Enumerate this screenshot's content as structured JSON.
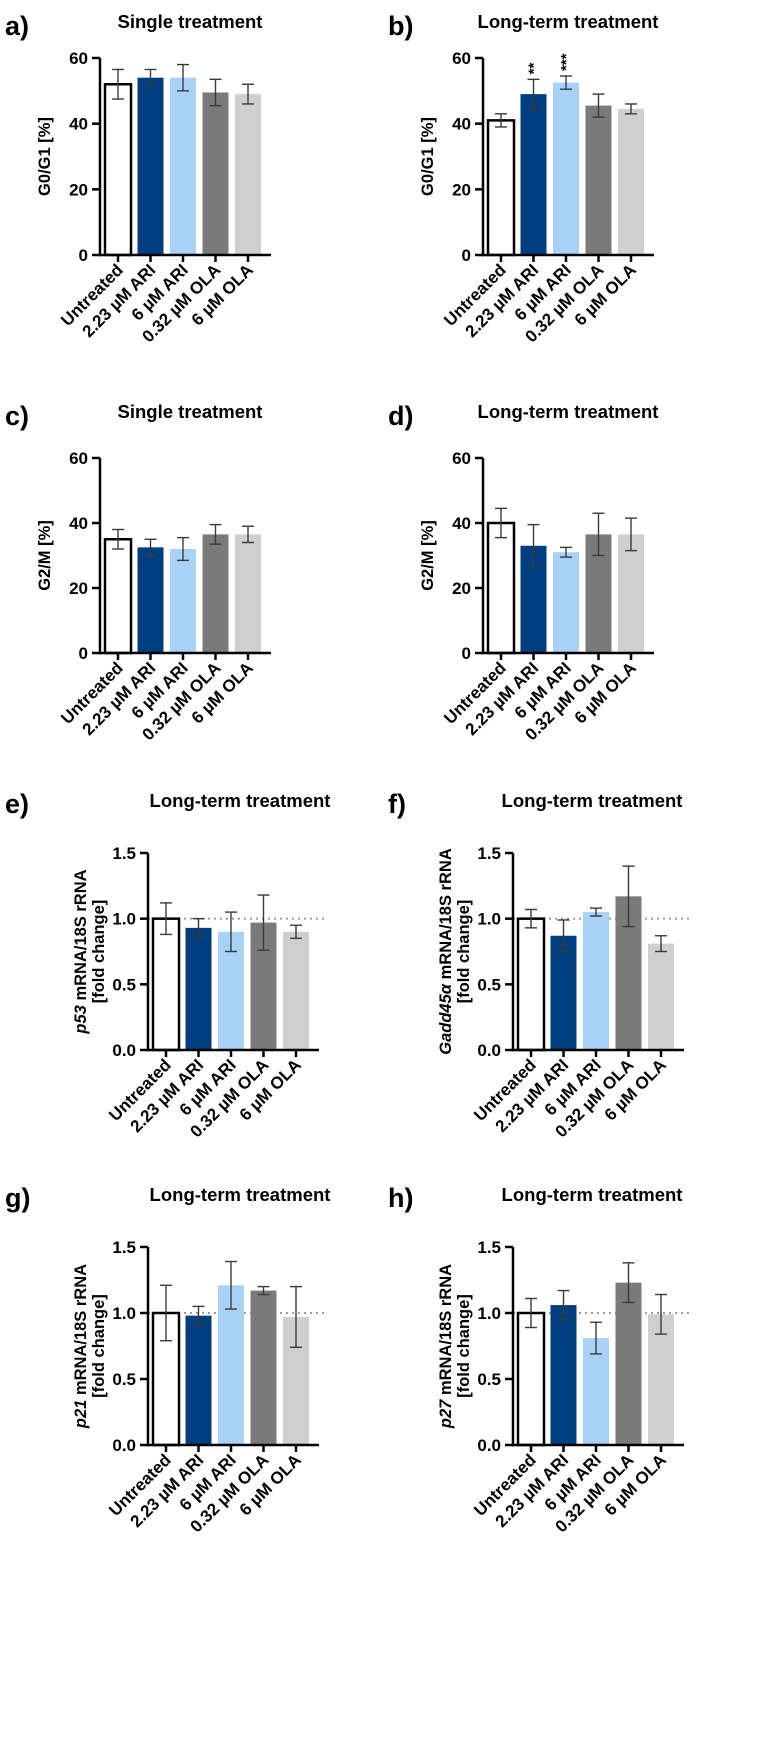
{
  "figure": {
    "bg": "#ffffff"
  },
  "colors": [
    "#ffffff",
    "#003f7f",
    "#a8d1f7",
    "#7a7a7a",
    "#cfcfcf"
  ],
  "chart_data": [
    {
      "id": "a",
      "panel_label": "a)",
      "type": "bar",
      "title": "Single treatment",
      "ylabel_italic": "",
      "ylabel": "G0/G1 [%]",
      "ylabel2": "",
      "ylim": [
        0,
        60
      ],
      "yticks": [
        "0",
        "20",
        "40",
        "60"
      ],
      "ytick_values": [
        0,
        20,
        40,
        60
      ],
      "categories": [
        "Untreated",
        "2.23 µM ARI",
        "6 µM ARI",
        "0.32 µM OLA",
        "6 µM OLA"
      ],
      "values": [
        52.0,
        54.0,
        54.0,
        49.5,
        49.0
      ],
      "errors": [
        4.5,
        2.5,
        4.0,
        4.0,
        3.0
      ],
      "significance": [
        "",
        "",
        "",
        "",
        ""
      ],
      "reference_line": null
    },
    {
      "id": "b",
      "panel_label": "b)",
      "type": "bar",
      "title": "Long-term treatment",
      "ylabel_italic": "",
      "ylabel": "G0/G1 [%]",
      "ylabel2": "",
      "ylim": [
        0,
        60
      ],
      "yticks": [
        "0",
        "20",
        "40",
        "60"
      ],
      "ytick_values": [
        0,
        20,
        40,
        60
      ],
      "categories": [
        "Untreated",
        "2.23 µM ARI",
        "6 µM ARI",
        "0.32 µM OLA",
        "6 µM OLA"
      ],
      "values": [
        41.0,
        49.0,
        52.5,
        45.5,
        44.5
      ],
      "errors": [
        2.0,
        4.5,
        2.0,
        3.5,
        1.5
      ],
      "significance": [
        "",
        "**",
        "***",
        "",
        ""
      ],
      "reference_line": null
    },
    {
      "id": "c",
      "panel_label": "c)",
      "type": "bar",
      "title": "Single treatment",
      "ylabel_italic": "",
      "ylabel": "G2/M [%]",
      "ylabel2": "",
      "ylim": [
        0,
        60
      ],
      "yticks": [
        "0",
        "20",
        "40",
        "60"
      ],
      "ytick_values": [
        0,
        20,
        40,
        60
      ],
      "categories": [
        "Untreated",
        "2.23 µM ARI",
        "6 µM ARI",
        "0.32 µM OLA",
        "6 µM OLA"
      ],
      "values": [
        35.0,
        32.5,
        32.0,
        36.5,
        36.5
      ],
      "errors": [
        3.0,
        2.5,
        3.5,
        3.0,
        2.5
      ],
      "significance": [
        "",
        "",
        "",
        "",
        ""
      ],
      "reference_line": null
    },
    {
      "id": "d",
      "panel_label": "d)",
      "type": "bar",
      "title": "Long-term treatment",
      "ylabel_italic": "",
      "ylabel": "G2/M [%]",
      "ylabel2": "",
      "ylim": [
        0,
        60
      ],
      "yticks": [
        "0",
        "20",
        "40",
        "60"
      ],
      "ytick_values": [
        0,
        20,
        40,
        60
      ],
      "categories": [
        "Untreated",
        "2.23 µM ARI",
        "6 µM ARI",
        "0.32 µM OLA",
        "6 µM OLA"
      ],
      "values": [
        40.0,
        33.0,
        31.0,
        36.5,
        36.5
      ],
      "errors": [
        4.5,
        6.5,
        1.5,
        6.5,
        5.0
      ],
      "significance": [
        "",
        "",
        "",
        "",
        ""
      ],
      "reference_line": null
    },
    {
      "id": "e",
      "panel_label": "e)",
      "type": "bar",
      "title": "Long-term treatment",
      "ylabel_italic": "p53",
      "ylabel": " mRNA/18S rRNA",
      "ylabel2": "[fold change]",
      "ylim": [
        0,
        1.5
      ],
      "yticks": [
        "0.0",
        "0.5",
        "1.0",
        "1.5"
      ],
      "ytick_values": [
        0,
        0.5,
        1.0,
        1.5
      ],
      "categories": [
        "Untreated",
        "2.23 µM ARI",
        "6 µM ARI",
        "0.32 µM OLA",
        "6 µM OLA"
      ],
      "values": [
        1.0,
        0.93,
        0.9,
        0.97,
        0.9
      ],
      "errors": [
        0.12,
        0.07,
        0.15,
        0.21,
        0.05
      ],
      "significance": [
        "",
        "",
        "",
        "",
        ""
      ],
      "reference_line": 1.0
    },
    {
      "id": "f",
      "panel_label": "f)",
      "type": "bar",
      "title": "Long-term treatment",
      "ylabel_italic": "Gadd45α",
      "ylabel": " mRNA/18S rRNA",
      "ylabel2": "[fold change]",
      "ylim": [
        0,
        1.5
      ],
      "yticks": [
        "0.0",
        "0.5",
        "1.0",
        "1.5"
      ],
      "ytick_values": [
        0,
        0.5,
        1.0,
        1.5
      ],
      "categories": [
        "Untreated",
        "2.23 µM ARI",
        "6 µM ARI",
        "0.32 µM OLA",
        "6 µM OLA"
      ],
      "values": [
        1.0,
        0.87,
        1.05,
        1.17,
        0.81
      ],
      "errors": [
        0.07,
        0.12,
        0.03,
        0.23,
        0.06
      ],
      "significance": [
        "",
        "",
        "",
        "",
        ""
      ],
      "reference_line": 1.0
    },
    {
      "id": "g",
      "panel_label": "g)",
      "type": "bar",
      "title": "Long-term treatment",
      "ylabel_italic": "p21",
      "ylabel": " mRNA/18S rRNA",
      "ylabel2": "[fold change]",
      "ylim": [
        0,
        1.5
      ],
      "yticks": [
        "0.0",
        "0.5",
        "1.0",
        "1.5"
      ],
      "ytick_values": [
        0,
        0.5,
        1.0,
        1.5
      ],
      "categories": [
        "Untreated",
        "2.23 µM ARI",
        "6 µM ARI",
        "0.32 µM OLA",
        "6 µM OLA"
      ],
      "values": [
        1.0,
        0.98,
        1.21,
        1.17,
        0.97
      ],
      "errors": [
        0.21,
        0.07,
        0.18,
        0.03,
        0.23
      ],
      "significance": [
        "",
        "",
        "",
        "",
        ""
      ],
      "reference_line": 1.0
    },
    {
      "id": "h",
      "panel_label": "h)",
      "type": "bar",
      "title": "Long-term treatment",
      "ylabel_italic": "p27",
      "ylabel": " mRNA/18S rRNA",
      "ylabel2": "[fold change]",
      "ylim": [
        0,
        1.5
      ],
      "yticks": [
        "0.0",
        "0.5",
        "1.0",
        "1.5"
      ],
      "ytick_values": [
        0,
        0.5,
        1.0,
        1.5
      ],
      "categories": [
        "Untreated",
        "2.23 µM ARI",
        "6 µM ARI",
        "0.32 µM OLA",
        "6 µM OLA"
      ],
      "values": [
        1.0,
        1.06,
        0.81,
        1.23,
        0.99
      ],
      "errors": [
        0.11,
        0.11,
        0.12,
        0.15,
        0.15
      ],
      "significance": [
        "",
        "",
        "",
        "",
        ""
      ],
      "reference_line": 1.0
    }
  ]
}
